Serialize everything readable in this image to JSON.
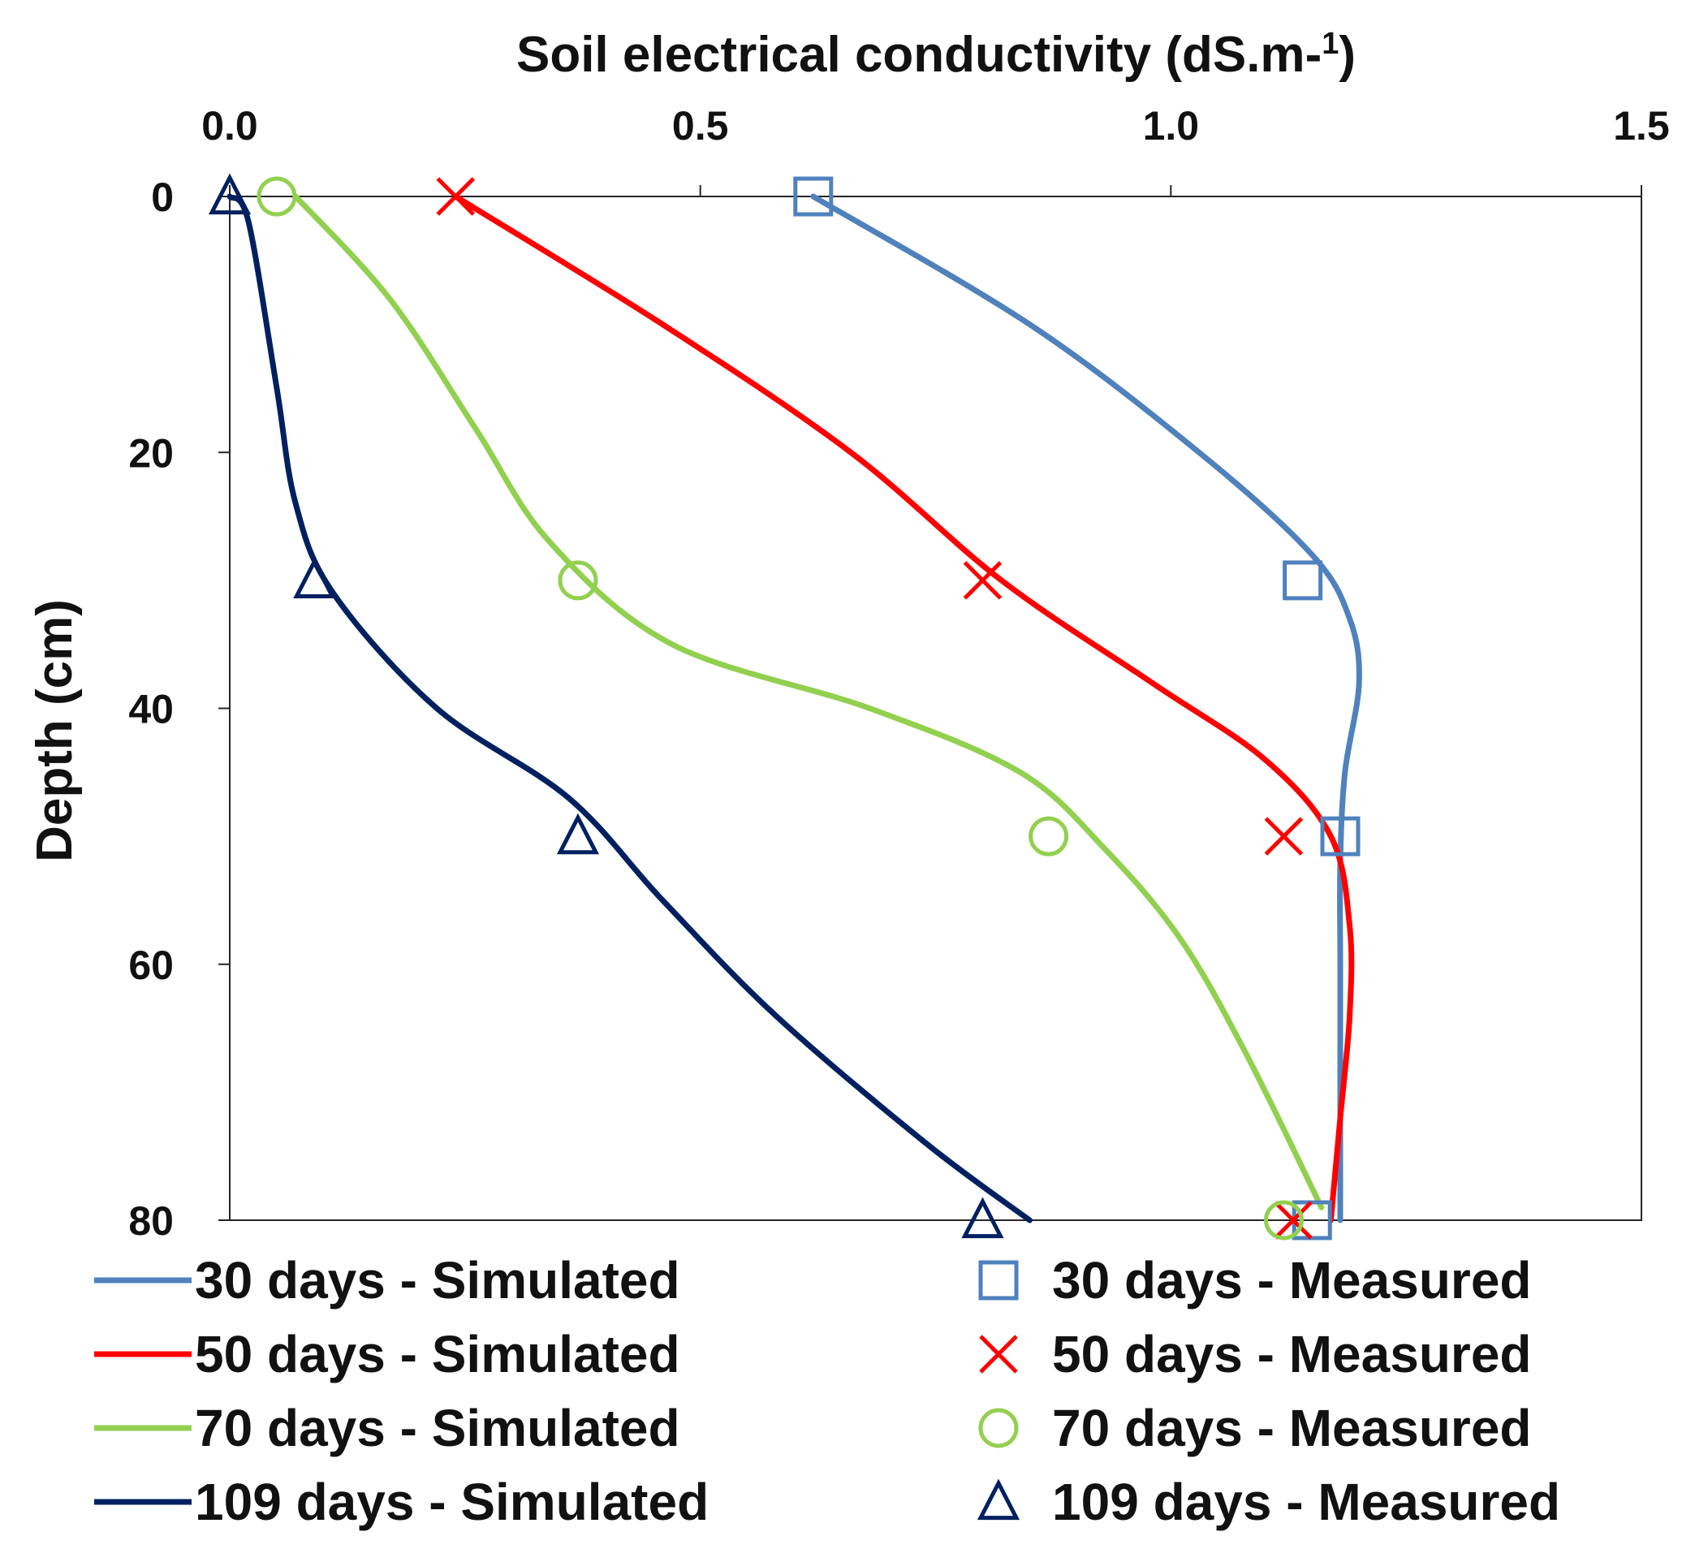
{
  "chart_data": {
    "type": "line",
    "title": "",
    "xlabel": "Soil electrical conductivity (dS.m-1)",
    "xlabel_main": "Soil electrical conductivity (dS.m-",
    "xlabel_sup": "1",
    "xlabel_close": ")",
    "ylabel": "Depth (cm)",
    "xlim": [
      0,
      1.5
    ],
    "ylim": [
      0,
      80
    ],
    "y_inverted": true,
    "x_axis_position": "top",
    "x_ticks": [
      "0.0",
      "0.5",
      "1.0",
      "1.5"
    ],
    "x_tick_values": [
      0,
      0.5,
      1.0,
      1.5
    ],
    "y_ticks": [
      "0",
      "20",
      "40",
      "60",
      "80"
    ],
    "y_tick_values": [
      0,
      20,
      40,
      60,
      80
    ],
    "grid": false,
    "legend_position": "bottom",
    "series": [
      {
        "name": "30 days - Simulated",
        "kind": "line",
        "color": "#4f81bd",
        "points": [
          [
            0.62,
            0
          ],
          [
            0.85,
            10
          ],
          [
            1.03,
            20
          ],
          [
            1.15,
            28
          ],
          [
            1.19,
            33
          ],
          [
            1.2,
            38
          ],
          [
            1.185,
            45
          ],
          [
            1.18,
            52
          ],
          [
            1.18,
            60
          ],
          [
            1.18,
            70
          ],
          [
            1.18,
            80
          ]
        ]
      },
      {
        "name": "50 days - Simulated",
        "kind": "line",
        "color": "#ff0000",
        "points": [
          [
            0.24,
            0
          ],
          [
            0.46,
            10
          ],
          [
            0.66,
            20
          ],
          [
            0.82,
            30
          ],
          [
            0.98,
            38
          ],
          [
            1.1,
            44
          ],
          [
            1.17,
            50
          ],
          [
            1.19,
            57
          ],
          [
            1.19,
            64
          ],
          [
            1.18,
            72
          ],
          [
            1.17,
            80
          ]
        ]
      },
      {
        "name": "70 days - Simulated",
        "kind": "line",
        "color": "#92d050",
        "points": [
          [
            0.07,
            0
          ],
          [
            0.17,
            8
          ],
          [
            0.26,
            18
          ],
          [
            0.34,
            27
          ],
          [
            0.47,
            35
          ],
          [
            0.68,
            40
          ],
          [
            0.84,
            45
          ],
          [
            0.93,
            51
          ],
          [
            1.01,
            58
          ],
          [
            1.08,
            67
          ],
          [
            1.16,
            79
          ]
        ]
      },
      {
        "name": "109 days - Simulated",
        "kind": "line",
        "color": "#002060",
        "points": [
          [
            0.0,
            0
          ],
          [
            0.02,
            2
          ],
          [
            0.05,
            15
          ],
          [
            0.07,
            24
          ],
          [
            0.11,
            31
          ],
          [
            0.22,
            40
          ],
          [
            0.36,
            47
          ],
          [
            0.46,
            55
          ],
          [
            0.58,
            64
          ],
          [
            0.74,
            74
          ],
          [
            0.85,
            80
          ]
        ]
      },
      {
        "name": "30 days - Measured",
        "kind": "marker",
        "marker": "square",
        "color": "#4f81bd",
        "points": [
          [
            0.62,
            0
          ],
          [
            1.14,
            30
          ],
          [
            1.18,
            50
          ],
          [
            1.15,
            80
          ]
        ]
      },
      {
        "name": "50 days - Measured",
        "kind": "marker",
        "marker": "x",
        "color": "#ff0000",
        "points": [
          [
            0.24,
            0
          ],
          [
            0.8,
            30
          ],
          [
            1.12,
            50
          ],
          [
            1.13,
            80
          ]
        ]
      },
      {
        "name": "70 days - Measured",
        "kind": "marker",
        "marker": "circle",
        "color": "#92d050",
        "points": [
          [
            0.05,
            0
          ],
          [
            0.37,
            30
          ],
          [
            0.87,
            50
          ],
          [
            1.12,
            80
          ]
        ]
      },
      {
        "name": "109 days - Measured",
        "kind": "marker",
        "marker": "triangle",
        "color": "#002060",
        "points": [
          [
            0.0,
            0
          ],
          [
            0.09,
            30
          ],
          [
            0.37,
            50
          ],
          [
            0.8,
            80
          ]
        ]
      }
    ]
  }
}
